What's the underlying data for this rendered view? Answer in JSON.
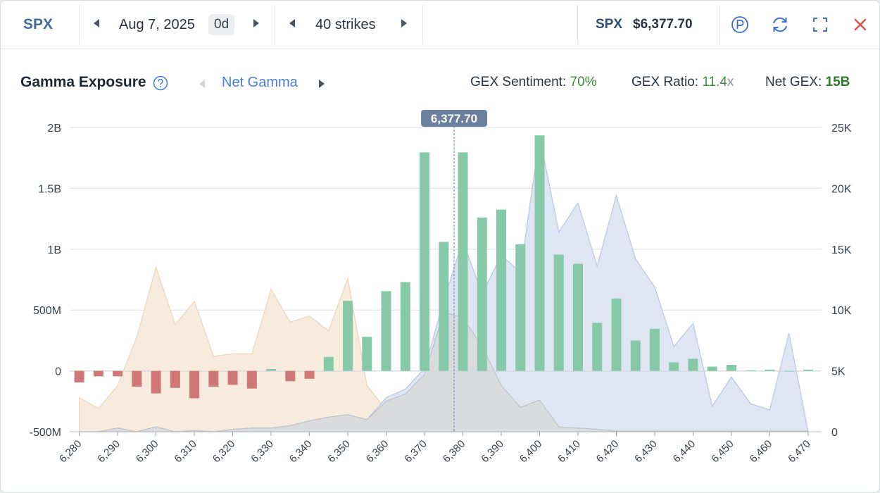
{
  "toolbar": {
    "ticker": "SPX",
    "date": "Aug 7, 2025",
    "dte": "0d",
    "strikes": "40 strikes",
    "symbol": "SPX",
    "price": "$6,377.70"
  },
  "icons": {
    "prev_date": "chevron-left-icon",
    "next_date": "chevron-right-icon",
    "prev_strikes": "chevron-left-icon",
    "next_strikes": "chevron-right-icon",
    "premium": "p-circle-icon",
    "refresh": "refresh-icon",
    "fullscreen": "expand-icon",
    "close": "close-icon",
    "help": "question-circle-icon"
  },
  "header": {
    "title": "Gamma Exposure",
    "mode": "Net Gamma",
    "sentiment_label": "GEX Sentiment:",
    "sentiment_value": "70%",
    "ratio_label": "GEX Ratio:",
    "ratio_value": "11.4",
    "ratio_unit": "x",
    "net_label": "Net GEX:",
    "net_value": "15B"
  },
  "colors": {
    "positive_bar": "#86c9a9",
    "negative_bar": "#d07878",
    "call_area": "#dfe5f3",
    "put_area": "#f6ebdd",
    "overlap_area": "#d8d9da",
    "spot_line": "#5b7fc7",
    "spot_label_bg": "#6b7f9e",
    "close": "#d9534f",
    "accent": "#4a7fd4"
  },
  "chart_data": {
    "type": "bar",
    "spot": 6377.7,
    "spot_label": "6,377.70",
    "x": [
      6280,
      6285,
      6290,
      6295,
      6300,
      6305,
      6310,
      6315,
      6320,
      6325,
      6330,
      6335,
      6340,
      6345,
      6350,
      6355,
      6360,
      6365,
      6370,
      6375,
      6380,
      6385,
      6390,
      6395,
      6400,
      6405,
      6410,
      6415,
      6420,
      6425,
      6430,
      6435,
      6440,
      6445,
      6450,
      6455,
      6460,
      6465,
      6470
    ],
    "xticks": [
      6280,
      6290,
      6300,
      6310,
      6320,
      6330,
      6340,
      6350,
      6360,
      6370,
      6380,
      6390,
      6400,
      6410,
      6420,
      6430,
      6440,
      6450,
      6460,
      6470
    ],
    "xtick_labels": [
      "6,280",
      "6,290",
      "6,300",
      "6,310",
      "6,320",
      "6,330",
      "6,340",
      "6,350",
      "6,360",
      "6,370",
      "6,380",
      "6,390",
      "6,400",
      "6,410",
      "6,420",
      "6,430",
      "6,440",
      "6,450",
      "6,460",
      "6,470"
    ],
    "xlim": [
      6277.5,
      6473.5
    ],
    "net_gamma": [
      -95,
      -45,
      -45,
      -130,
      -185,
      -140,
      -225,
      -130,
      -115,
      -145,
      15,
      -85,
      -65,
      115,
      575,
      280,
      655,
      730,
      1795,
      1060,
      1795,
      1260,
      1325,
      1040,
      1935,
      955,
      880,
      395,
      595,
      250,
      345,
      70,
      100,
      35,
      50,
      5,
      10,
      0,
      10
    ],
    "ylim_left": [
      -500,
      2000
    ],
    "yticks_left": [
      -500,
      0,
      500,
      1000,
      1500,
      2000
    ],
    "ytick_labels_left": [
      "-500M",
      "0",
      "500M",
      "1B",
      "1.5B",
      "2B"
    ],
    "series": [
      {
        "name": "",
        "values": [
          2800,
          1900,
          3800,
          7800,
          13500,
          8800,
          10700,
          6200,
          6400,
          6400,
          11700,
          9000,
          9500,
          8300,
          12600,
          3800,
          1800,
          2500,
          3600,
          10400,
          10400,
          7200,
          2000,
          1000,
          600,
          300,
          200,
          100,
          50,
          50,
          50,
          50,
          50,
          50,
          50,
          50,
          50,
          50,
          50
        ]
      },
      {
        "name": "",
        "values": [
          0,
          0,
          300,
          0,
          400,
          0,
          100,
          0,
          200,
          300,
          300,
          500,
          900,
          1200,
          1400,
          1000,
          2800,
          3500,
          5200,
          10800,
          15700,
          11300,
          14500,
          13100,
          24300,
          16400,
          18800,
          13600,
          19400,
          14200,
          11900,
          7000,
          8900,
          2100,
          4500,
          2300,
          1800,
          8100,
          0
        ]
      },
      {
        "name": "",
        "values": [
          0,
          0,
          300,
          0,
          400,
          0,
          100,
          0,
          200,
          300,
          300,
          500,
          900,
          1200,
          1400,
          1000,
          2500,
          3100,
          4700,
          9800,
          9400,
          7000,
          3800,
          2000,
          2600,
          400,
          300,
          200,
          50,
          50,
          50,
          50,
          50,
          50,
          50,
          50,
          50,
          50,
          50
        ]
      }
    ],
    "ylim_right": [
      0,
      25000
    ],
    "yticks_right": [
      0,
      5000,
      10000,
      15000,
      20000,
      25000
    ],
    "ytick_labels_right": [
      "0",
      "5K",
      "10K",
      "15K",
      "20K",
      "25K"
    ],
    "grid": true,
    "legend": "none"
  }
}
